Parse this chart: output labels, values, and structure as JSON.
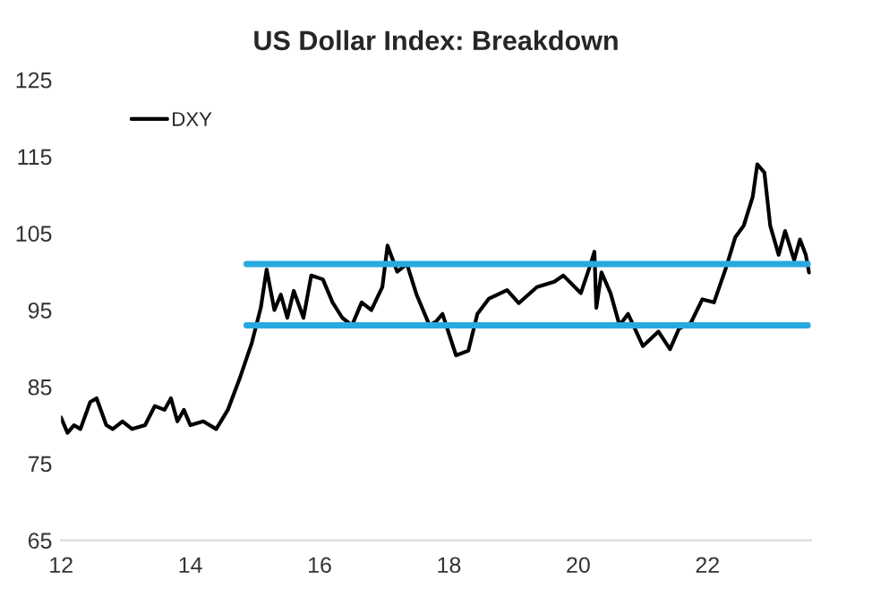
{
  "chart_data": {
    "type": "line",
    "title": "US Dollar Index: Breakdown",
    "xlim": [
      12,
      23.6
    ],
    "xticks": [
      12,
      14,
      16,
      18,
      20,
      22
    ],
    "ylim": [
      65,
      125
    ],
    "yticks": [
      65,
      75,
      85,
      95,
      105,
      115,
      125
    ],
    "grid": false,
    "legend": "top left",
    "marker": "none",
    "line_style": "solid",
    "series": [
      {
        "name": "DXY",
        "color": "#000000",
        "x": [
          12.0,
          12.1,
          12.2,
          12.3,
          12.45,
          12.55,
          12.7,
          12.8,
          12.95,
          13.1,
          13.3,
          13.45,
          13.6,
          13.7,
          13.8,
          13.9,
          14.0,
          14.2,
          14.4,
          14.58,
          14.76,
          14.95,
          15.09,
          15.18,
          15.3,
          15.4,
          15.5,
          15.6,
          15.75,
          15.87,
          16.05,
          16.2,
          16.35,
          16.5,
          16.65,
          16.8,
          16.97,
          17.05,
          17.2,
          17.35,
          17.5,
          17.7,
          17.8,
          17.9,
          18.11,
          18.3,
          18.44,
          18.62,
          18.9,
          19.08,
          19.36,
          19.63,
          19.77,
          20.04,
          20.18,
          20.25,
          20.28,
          20.36,
          20.5,
          20.64,
          20.77,
          21.0,
          21.24,
          21.42,
          21.56,
          21.74,
          21.92,
          22.1,
          22.29,
          22.43,
          22.56,
          22.7,
          22.77,
          22.88,
          22.97,
          23.1,
          23.2,
          23.34,
          23.43,
          23.52,
          23.57
        ],
        "values": [
          81,
          79,
          80,
          79.5,
          83,
          83.5,
          80,
          79.5,
          80.5,
          79.5,
          80,
          82.5,
          82,
          83.5,
          80.5,
          82,
          80,
          80.5,
          79.5,
          82,
          86,
          90.7,
          95.3,
          100.3,
          95,
          97,
          94,
          97.5,
          94,
          99.5,
          99,
          96,
          94,
          93,
          96,
          95,
          98,
          103.4,
          100,
          101,
          97,
          93,
          93.5,
          94.5,
          89.1,
          89.7,
          94.5,
          96.5,
          97.6,
          95.9,
          98,
          98.7,
          99.5,
          97.2,
          100.7,
          102.6,
          95.3,
          99.9,
          97.2,
          93,
          94.5,
          90.3,
          92.2,
          89.9,
          92.6,
          93.3,
          96.4,
          96,
          100.6,
          104.5,
          106,
          109.8,
          114,
          112.9,
          106,
          102.2,
          105.3,
          101.5,
          104.2,
          102.2,
          99.9
        ]
      },
      {
        "color": "#29a8e0",
        "x": [
          14.87,
          23.55
        ],
        "values": [
          101,
          101
        ]
      },
      {
        "color": "#29a8e0",
        "x": [
          14.87,
          23.55
        ],
        "values": [
          93,
          93
        ]
      }
    ]
  }
}
